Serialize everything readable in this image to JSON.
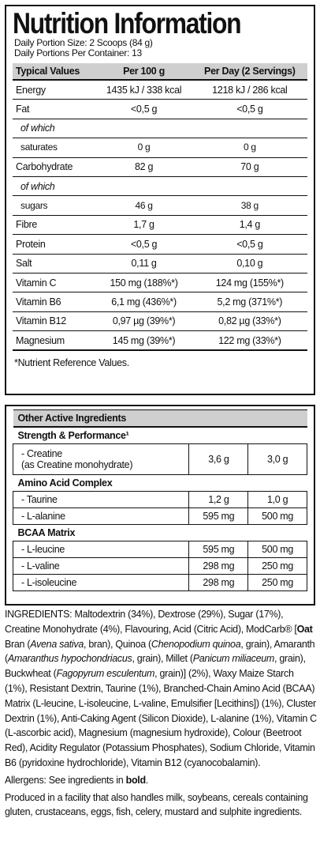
{
  "nutrition": {
    "title": "Nutrition Information",
    "portion_size": "Daily Portion Size: 2 Scoops (84 g)",
    "portions_per_container": "Daily Portions Per Container: 13",
    "header": [
      "Typical Values",
      "Per 100 g",
      "Per Day (2 Servings)"
    ],
    "rows": [
      [
        "Energy",
        "1435 kJ / 338 kcal",
        "1218 kJ / 286 kcal"
      ],
      [
        "Fat",
        "<0,5 g",
        "<0,5 g"
      ],
      [
        "of which"
      ],
      [
        "saturates",
        "0 g",
        "0 g"
      ],
      [
        "Carbohydrate",
        "82 g",
        "70 g"
      ],
      [
        "of which"
      ],
      [
        "sugars",
        "46 g",
        "38 g"
      ],
      [
        "Fibre",
        "1,7 g",
        "1,4 g"
      ],
      [
        "Protein",
        "<0,5 g",
        "<0,5 g"
      ],
      [
        "Salt",
        "0,11 g",
        "0,10 g"
      ],
      [
        "Vitamin C",
        "150 mg (188%*)",
        "124 mg (155%*)"
      ],
      [
        "Vitamin B6",
        "6,1 mg (436%*)",
        "5,2 mg (371%*)"
      ],
      [
        "Vitamin B12",
        "0,97 µg (39%*)",
        "0,82 µg (33%*)"
      ],
      [
        "Magnesium",
        "145 mg (39%*)",
        "122 mg (33%*)"
      ]
    ],
    "footnote": "*Nutrient Reference Values."
  },
  "other": {
    "title": "Other Active Ingredients",
    "groups": [
      {
        "name": "Strength & Performance¹",
        "rows": [
          [
            "- Creatine",
            "(as Creatine monohydrate)",
            "3,6 g",
            "3,0 g"
          ]
        ]
      },
      {
        "name": "Amino Acid Complex",
        "rows": [
          [
            "- Taurine",
            "1,2 g",
            "1,0 g"
          ],
          [
            "- L-alanine",
            "595 mg",
            "500 mg"
          ]
        ]
      },
      {
        "name": "BCAA Matrix",
        "rows": [
          [
            "- L-leucine",
            "595 mg",
            "500 mg"
          ],
          [
            "- L-valine",
            "298 mg",
            "250 mg"
          ],
          [
            "- L-isoleucine",
            "298 mg",
            "250 mg"
          ]
        ]
      }
    ]
  },
  "ingredients": {
    "segments": [
      {
        "text": "INGREDIENTS: Maltodextrin (34%), Dextrose (29%), Sugar (17%), Creatine Monohydrate (4%), Flavouring, Acid (Citric Acid), ModCarb® [",
        "style": "normal"
      },
      {
        "text": "Oat",
        "style": "bold"
      },
      {
        "text": " Bran (",
        "style": "normal"
      },
      {
        "text": "Avena sativa",
        "style": "italic"
      },
      {
        "text": ", bran), Quinoa (",
        "style": "normal"
      },
      {
        "text": "Chenopodium quinoa",
        "style": "italic"
      },
      {
        "text": ", grain), Amaranth (",
        "style": "normal"
      },
      {
        "text": "Amaranthus hypochondriacus",
        "style": "italic"
      },
      {
        "text": ", grain), Millet (",
        "style": "normal"
      },
      {
        "text": "Panicum miliaceum",
        "style": "italic"
      },
      {
        "text": ", grain), Buckwheat (",
        "style": "normal"
      },
      {
        "text": "Fagopyrum esculentum",
        "style": "italic"
      },
      {
        "text": ", grain)] (2%), Waxy Maize Starch (1%), Resistant Dextrin, Taurine (1%), Branched-Chain Amino Acid (BCAA) Matrix (L-leucine, L-isoleucine, L-valine, Emulsifier [Lecithins]) (1%), Cluster Dextrin (1%), Anti-Caking Agent (Silicon Dioxide), L-alanine (1%), Vitamin C (L-ascorbic acid), Magnesium (magnesium hydroxide), Colour (Beetroot Red), Acidity Regulator (Potassium Phosphates), Sodium Chloride, Vitamin B6 (pyridoxine hydrochloride), Vitamin B12 (cyanocobalamin).",
        "style": "normal"
      }
    ],
    "allergens": [
      {
        "text": "Allergens: See ingredients in ",
        "style": "normal"
      },
      {
        "text": "bold",
        "style": "bold"
      },
      {
        "text": ".",
        "style": "normal"
      }
    ],
    "facility": "Produced in a facility that also handles milk, soybeans, cereals containing gluten, crustaceans, eggs, fish, celery, mustard and sulphite ingredients."
  }
}
